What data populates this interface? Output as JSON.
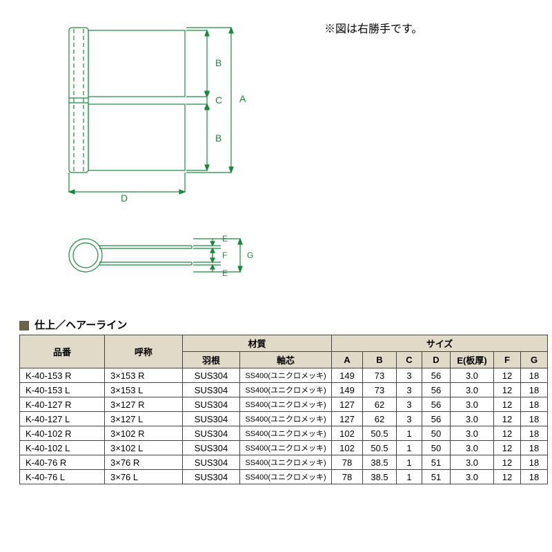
{
  "note": "※図は右勝手です。",
  "diagram": {
    "labels": {
      "A": "A",
      "B": "B",
      "C": "C",
      "D": "D",
      "E": "E",
      "F": "F",
      "G": "G"
    },
    "line_color": "#1a8a3a",
    "line_width": 1.2
  },
  "section_title": "仕上／ヘアーライン",
  "table": {
    "header_bg": "#e0dbc8",
    "headers": {
      "code": "品番",
      "name": "呼称",
      "material": "材質",
      "material_leaf": "羽根",
      "material_pin": "軸芯",
      "size": "サイズ",
      "A": "A",
      "B": "B",
      "C": "C",
      "D": "D",
      "E": "E(板厚)",
      "F": "F",
      "G": "G"
    },
    "rows": [
      {
        "code": "K-40-153 R",
        "name": "3×153 R",
        "leaf": "SUS304",
        "pin": "SS400(ユニクロメッキ)",
        "A": "149",
        "B": "73",
        "C": "3",
        "D": "56",
        "E": "3.0",
        "F": "12",
        "G": "18"
      },
      {
        "code": "K-40-153 L",
        "name": "3×153 L",
        "leaf": "SUS304",
        "pin": "SS400(ユニクロメッキ)",
        "A": "149",
        "B": "73",
        "C": "3",
        "D": "56",
        "E": "3.0",
        "F": "12",
        "G": "18"
      },
      {
        "code": "K-40-127 R",
        "name": "3×127 R",
        "leaf": "SUS304",
        "pin": "SS400(ユニクロメッキ)",
        "A": "127",
        "B": "62",
        "C": "3",
        "D": "56",
        "E": "3.0",
        "F": "12",
        "G": "18"
      },
      {
        "code": "K-40-127 L",
        "name": "3×127 L",
        "leaf": "SUS304",
        "pin": "SS400(ユニクロメッキ)",
        "A": "127",
        "B": "62",
        "C": "3",
        "D": "56",
        "E": "3.0",
        "F": "12",
        "G": "18"
      },
      {
        "code": "K-40-102 R",
        "name": "3×102 R",
        "leaf": "SUS304",
        "pin": "SS400(ユニクロメッキ)",
        "A": "102",
        "B": "50.5",
        "C": "1",
        "D": "50",
        "E": "3.0",
        "F": "12",
        "G": "18"
      },
      {
        "code": "K-40-102 L",
        "name": "3×102 L",
        "leaf": "SUS304",
        "pin": "SS400(ユニクロメッキ)",
        "A": "102",
        "B": "50.5",
        "C": "1",
        "D": "50",
        "E": "3.0",
        "F": "12",
        "G": "18"
      },
      {
        "code": "K-40-76 R",
        "name": "3×76 R",
        "leaf": "SUS304",
        "pin": "SS400(ユニクロメッキ)",
        "A": "78",
        "B": "38.5",
        "C": "1",
        "D": "51",
        "E": "3.0",
        "F": "12",
        "G": "18"
      },
      {
        "code": "K-40-76 L",
        "name": "3×76 L",
        "leaf": "SUS304",
        "pin": "SS400(ユニクロメッキ)",
        "A": "78",
        "B": "38.5",
        "C": "1",
        "D": "51",
        "E": "3.0",
        "F": "12",
        "G": "18"
      }
    ]
  }
}
